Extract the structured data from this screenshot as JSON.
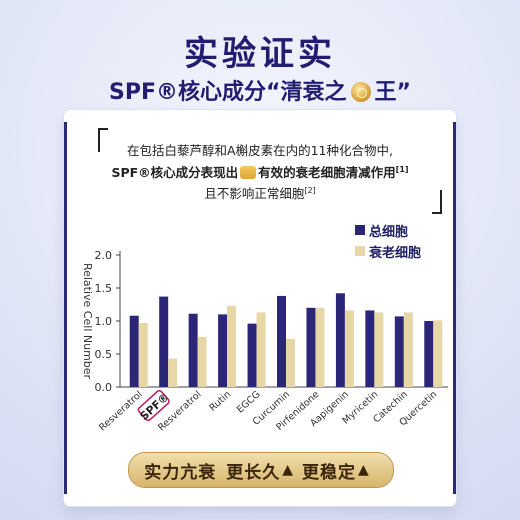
{
  "header": {
    "title": "实验证实",
    "subtitle_prefix": "SPF®核心成分“清衰之",
    "subtitle_suffix": "王”"
  },
  "card": {
    "note_line1": "在包括白藜芦醇和A槲皮素在内的11种化合物中,",
    "note_line2_prefix": "SPF®核心成分表现出",
    "note_line2_suffix": "有效的衰老细胞清减作用",
    "note_line2_ref": "[1]",
    "note_line3": "且不影响正常细胞",
    "note_line3_ref": "[2]"
  },
  "footer_button": {
    "part1": "实力亢衰",
    "part2": "更长久",
    "part3": "更稳定"
  },
  "colors": {
    "title": "#221d70",
    "series_total": "#2c2678",
    "series_senescent": "#e7d6a6",
    "button": "#d7b56b"
  },
  "chart_data": {
    "type": "bar",
    "ylabel": "Relative Cell Number",
    "ylim": [
      0,
      2.0
    ],
    "yticks": [
      "0.0",
      "0.5",
      "1.0",
      "1.5",
      "2.0"
    ],
    "legend_position": "top-right",
    "categories": [
      "Resveratrol",
      "SPF®",
      "Resveratrol",
      "Rutin",
      "EGCG",
      "Curcumin",
      "Pirfenidone",
      "Aapigenin",
      "Myricetin",
      "Catechin",
      "Quercetin"
    ],
    "series": [
      {
        "name": "总细胞",
        "color": "#2c2678",
        "values": [
          1.08,
          1.37,
          1.11,
          1.1,
          0.96,
          1.38,
          1.2,
          1.42,
          1.16,
          1.07,
          1.0
        ]
      },
      {
        "name": "衰老细胞",
        "color": "#e7d6a6",
        "values": [
          0.97,
          0.43,
          0.76,
          1.23,
          1.13,
          0.73,
          1.2,
          1.16,
          1.13,
          1.13,
          1.01
        ]
      }
    ]
  }
}
